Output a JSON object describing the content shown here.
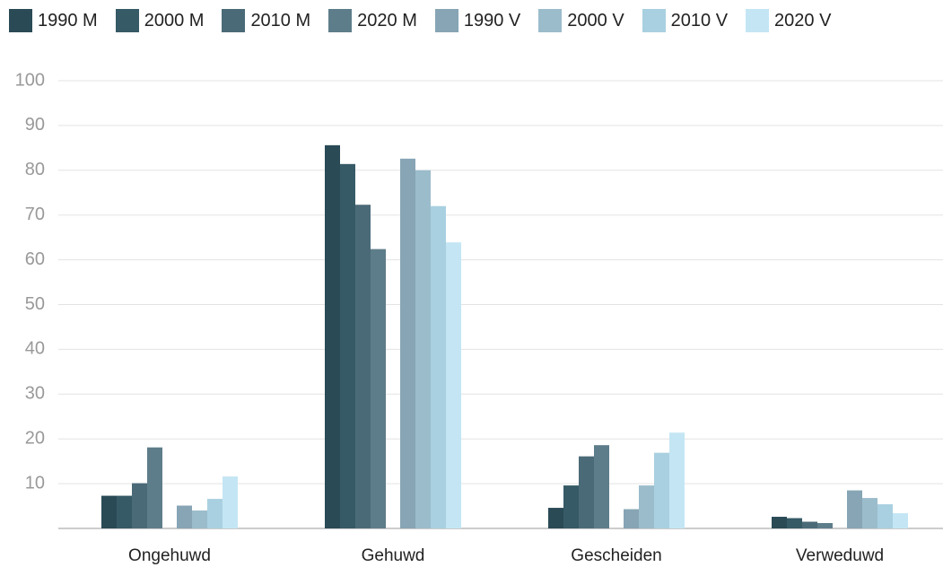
{
  "chart_data": {
    "type": "bar",
    "categories": [
      "Ongehuwd",
      "Gehuwd",
      "Gescheiden",
      "Verweduwd"
    ],
    "series": [
      {
        "name": "1990 M",
        "color": "#2a4a56",
        "values": [
          7.3,
          85.6,
          4.6,
          2.6
        ]
      },
      {
        "name": "2000 M",
        "color": "#365a66",
        "values": [
          7.3,
          81.4,
          9.6,
          2.3
        ]
      },
      {
        "name": "2010 M",
        "color": "#4b6a78",
        "values": [
          10.1,
          72.3,
          16.1,
          1.5
        ]
      },
      {
        "name": "2020 M",
        "color": "#5e7d8a",
        "values": [
          18.1,
          62.4,
          18.6,
          1.2
        ]
      },
      {
        "name": "1990 V",
        "color": "#87a5b5",
        "values": [
          5.1,
          82.6,
          4.3,
          8.5
        ]
      },
      {
        "name": "2000 V",
        "color": "#9bbccb",
        "values": [
          4.0,
          80.0,
          9.6,
          6.8
        ]
      },
      {
        "name": "2010 V",
        "color": "#a9d0e0",
        "values": [
          6.6,
          72.0,
          16.9,
          5.4
        ]
      },
      {
        "name": "2020 V",
        "color": "#c4e6f4",
        "values": [
          11.6,
          63.9,
          21.4,
          3.4
        ]
      }
    ],
    "ylim": [
      0,
      100
    ],
    "yticks": [
      10,
      20,
      30,
      40,
      50,
      60,
      70,
      80,
      90,
      100
    ],
    "grid": true
  }
}
